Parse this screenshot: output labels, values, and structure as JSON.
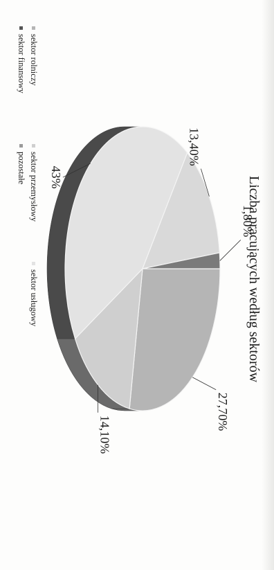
{
  "chart_data": {
    "type": "pie",
    "title": "Liczba pracujących według sektorów",
    "categories": [
      "sektor rolniczy",
      "sektor przemysłowy",
      "sektor usługowy",
      "sektor finansowy",
      "pozostałe"
    ],
    "values": [
      27.7,
      14.1,
      43,
      13.4,
      1.8
    ],
    "labels": [
      "27,70%",
      "14,10%",
      "43%",
      "13,40%",
      "1,80%"
    ],
    "colors": [
      "#b5b5b5",
      "#cfcfcf",
      "#e3e3e3",
      "#d9d9d9",
      "#7a7a7a"
    ],
    "legend_position": "bottom"
  }
}
